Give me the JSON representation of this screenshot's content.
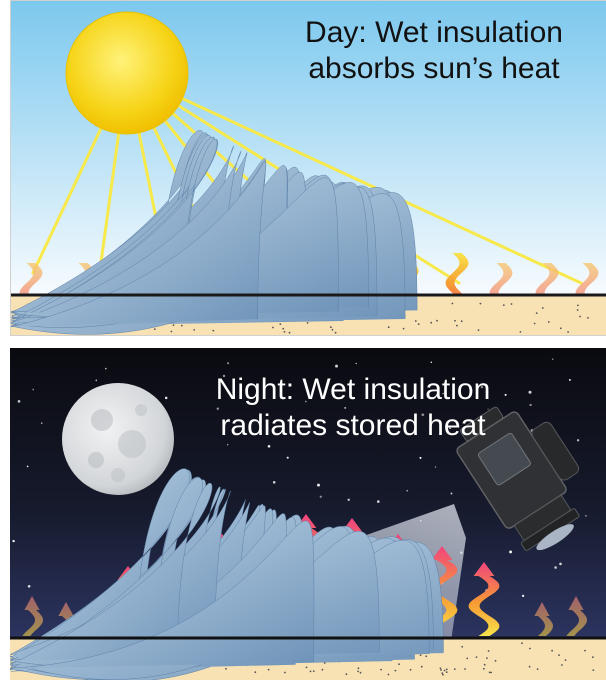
{
  "day": {
    "caption_line1": "Day: Wet insulation",
    "caption_line2": "absorbs sun’s heat"
  },
  "night": {
    "caption_line1": "Night: Wet insulation",
    "caption_line2": "radiates stored heat"
  },
  "colors": {
    "sky_day_top": "#7cc8ee",
    "sky_day_bottom": "#f7fbfe",
    "sun": "#f6d418",
    "sun_ray": "#f7e94a",
    "sky_night_top": "#0a0a10",
    "sky_night_bottom": "#2c3460",
    "insulation": "#f8e2b4",
    "roof_line": "#1a1a1a",
    "heat_pink": "#f0457e",
    "heat_orange": "#f79a34",
    "heat_yellow": "#f7e34a",
    "water_drop": "#8fb0cf",
    "moon": "#d9dcde",
    "camera_body": "#2f3032"
  },
  "icons": {
    "sun": "sun-icon",
    "moon": "moon-icon",
    "camera": "thermal-camera-icon",
    "heat": "heat-wave-arrow-icon",
    "water": "water-drop-icon"
  }
}
